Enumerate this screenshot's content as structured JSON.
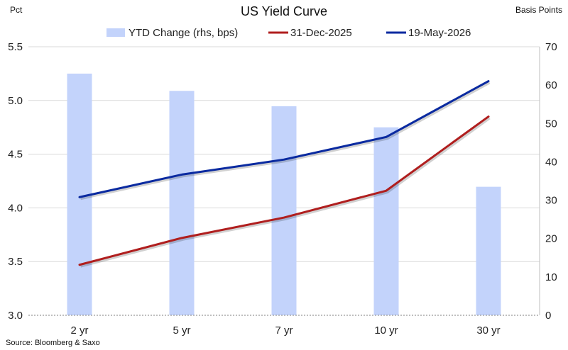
{
  "chart_data": {
    "type": "bar+line",
    "title": "US Yield Curve",
    "left_axis_label": "Pct",
    "right_axis_label": "Basis Points",
    "source": "Source: Bloomberg & Saxo",
    "categories": [
      "2 yr",
      "5 yr",
      "7 yr",
      "10 yr",
      "30 yr"
    ],
    "left_ylim": [
      3.0,
      5.5
    ],
    "left_ticks": [
      "3.0",
      "3.5",
      "4.0",
      "4.5",
      "5.0",
      "5.5"
    ],
    "right_ylim": [
      0,
      70
    ],
    "right_ticks": [
      "0",
      "10",
      "20",
      "30",
      "40",
      "50",
      "60",
      "70"
    ],
    "grid": true,
    "legend_position": "top",
    "series": [
      {
        "name": "YTD Change (rhs, bps)",
        "kind": "bar",
        "axis": "right",
        "color": "#c3d3fb",
        "values": [
          63,
          58.5,
          54.5,
          49,
          33.5
        ]
      },
      {
        "name": "31-Dec-2025",
        "kind": "line",
        "axis": "left",
        "color": "#b01e1e",
        "values": [
          3.47,
          3.72,
          3.91,
          4.16,
          4.85
        ]
      },
      {
        "name": "19-May-2026",
        "kind": "line",
        "axis": "left",
        "color": "#0a2aa0",
        "values": [
          4.1,
          4.31,
          4.45,
          4.66,
          5.18
        ]
      }
    ]
  }
}
